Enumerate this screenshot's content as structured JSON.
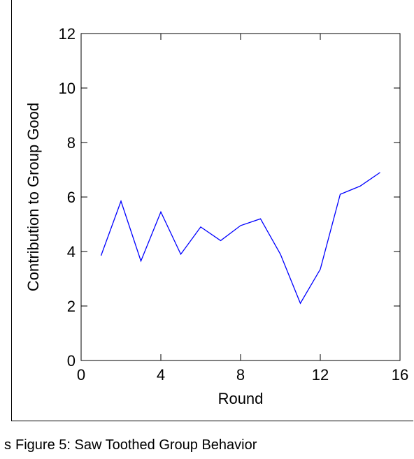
{
  "caption_prefix": "s",
  "caption": "Figure 5: Saw Toothed Group Behavior",
  "chart_data": {
    "type": "line",
    "title": "",
    "xlabel": "Round",
    "ylabel": "Contribution to Group Good",
    "xlim": [
      0,
      16
    ],
    "ylim": [
      0,
      12
    ],
    "xticks": [
      0,
      4,
      8,
      12,
      16
    ],
    "yticks": [
      0,
      2,
      4,
      6,
      8,
      10,
      12
    ],
    "grid": false,
    "series": [
      {
        "color": "#0000ff",
        "x": [
          1,
          2,
          3,
          4,
          5,
          6,
          7,
          8,
          9,
          10,
          11,
          12,
          13,
          14,
          15
        ],
        "y": [
          3.85,
          5.85,
          3.65,
          5.45,
          3.9,
          4.9,
          4.4,
          4.95,
          5.2,
          3.9,
          2.1,
          3.35,
          6.1,
          6.4,
          6.9
        ]
      }
    ]
  }
}
